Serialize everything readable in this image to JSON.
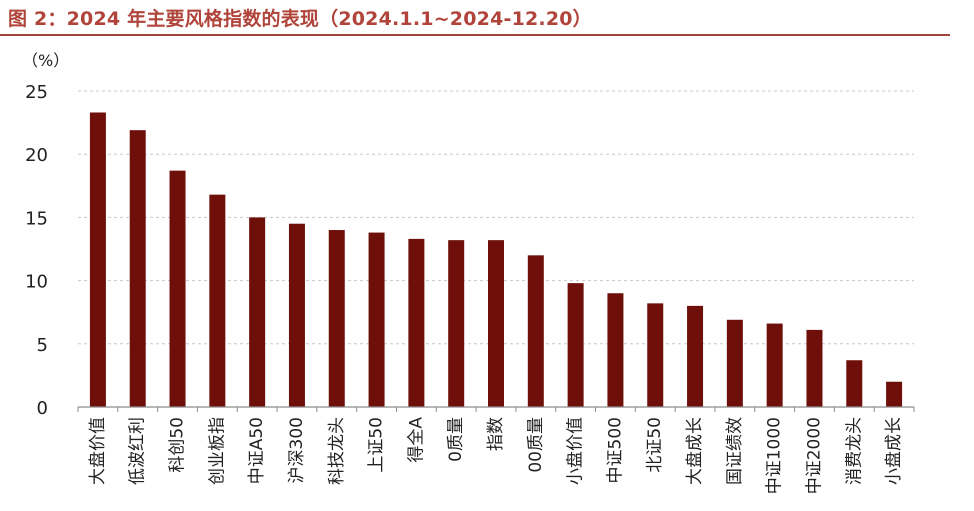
{
  "figure": {
    "title": "图 2：2024 年主要风格指数的表现（2024.1.1~2024-12.20）"
  },
  "colors": {
    "title": "#b0443a",
    "bar": "#6e0f0a",
    "grid": "#c8c8c8",
    "axis": "#8c8c8c",
    "text": "#222222"
  },
  "chart_data": {
    "type": "bar",
    "unit_label": "（%）",
    "ylim": [
      0,
      25
    ],
    "yticks": [
      0,
      5,
      10,
      15,
      20,
      25
    ],
    "grid": true,
    "grid_style": "dashed",
    "categories": [
      "大盘价值",
      "低波红利",
      "科创50",
      "创业板指",
      "中证A50",
      "沪深300",
      "科技龙头",
      "上证50",
      "得全A",
      "0质量",
      "指数",
      "00质量",
      "小盘价值",
      "中证500",
      "北证50",
      "大盘成长",
      "国证绩效",
      "中证1000",
      "中证2000",
      "消费龙头",
      "小盘成长"
    ],
    "values": [
      23.3,
      21.9,
      18.7,
      16.8,
      15.0,
      14.5,
      14.0,
      13.8,
      13.3,
      13.2,
      13.2,
      12.0,
      9.8,
      9.0,
      8.2,
      8.0,
      6.9,
      6.6,
      6.1,
      3.7,
      2.0
    ]
  }
}
